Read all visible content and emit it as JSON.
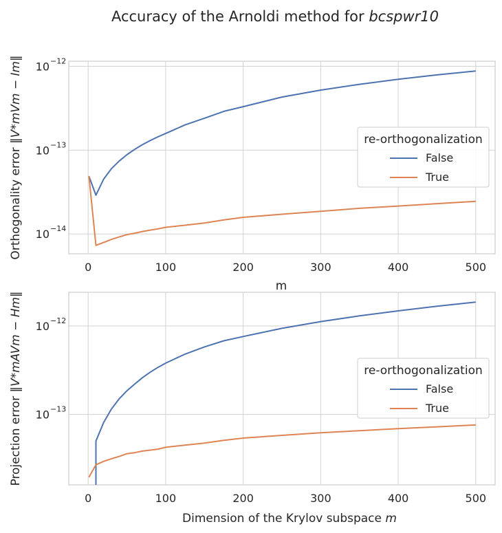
{
  "figure": {
    "title_text": "Accuracy of the Arnoldi method for ",
    "title_math": "bcspwr10"
  },
  "colors": {
    "false": "#4c72b0",
    "true": "#dd8452"
  },
  "chart_data": [
    {
      "type": "line",
      "ylabel_text": "Orthogonality error ",
      "ylabel_math": "‖V*mVm − Im‖",
      "xlabel": "m",
      "xlim": [
        -25,
        525
      ],
      "ylim": [
        5.8e-15,
        1.15e-12
      ],
      "yscale": "log",
      "grid": true,
      "legend_placement": "right",
      "xticks": [
        0,
        100,
        200,
        300,
        400,
        500
      ],
      "yticks": [
        {
          "value": 1e-14,
          "label": "10",
          "exp": "−14"
        },
        {
          "value": 1e-13,
          "label": "10",
          "exp": "−13"
        },
        {
          "value": 1e-12,
          "label": "10",
          "exp": "−12"
        }
      ],
      "legend": {
        "title": "re-orthogonalization",
        "entries": [
          "False",
          "True"
        ]
      },
      "series": [
        {
          "name": "False",
          "color": "#4c72b0",
          "x": [
            1,
            10,
            20,
            30,
            40,
            50,
            60,
            70,
            80,
            90,
            100,
            125,
            150,
            175,
            200,
            250,
            300,
            350,
            400,
            450,
            500
          ],
          "y": [
            4.9e-14,
            2.9e-14,
            4.5e-14,
            6e-14,
            7.4e-14,
            8.8e-14,
            1.02e-13,
            1.16e-13,
            1.3e-13,
            1.44e-13,
            1.58e-13,
            2e-13,
            2.4e-13,
            2.9e-13,
            3.3e-13,
            4.3e-13,
            5.2e-13,
            6.1e-13,
            7e-13,
            7.9e-13,
            8.8e-13
          ]
        },
        {
          "name": "True",
          "color": "#dd8452",
          "x": [
            1,
            10,
            20,
            30,
            40,
            50,
            60,
            70,
            80,
            90,
            100,
            125,
            150,
            175,
            200,
            250,
            300,
            350,
            400,
            450,
            500
          ],
          "y": [
            4.9e-14,
            7.3e-15,
            7.9e-15,
            8.6e-15,
            9.2e-15,
            9.8e-15,
            1.02e-14,
            1.07e-14,
            1.11e-14,
            1.15e-14,
            1.2e-14,
            1.27e-14,
            1.35e-14,
            1.47e-14,
            1.58e-14,
            1.72e-14,
            1.86e-14,
            2.02e-14,
            2.15e-14,
            2.3e-14,
            2.45e-14
          ]
        }
      ]
    },
    {
      "type": "line",
      "ylabel_text": "Projection error ",
      "ylabel_math": "‖V*mAVm − Hm‖",
      "xlabel_text": "Dimension of the Krylov subspace ",
      "xlabel_math": "m",
      "xlim": [
        -25,
        525
      ],
      "ylim": [
        1.6e-14,
        2.4e-12
      ],
      "yscale": "log",
      "grid": true,
      "legend_placement": "right",
      "xticks": [
        0,
        100,
        200,
        300,
        400,
        500
      ],
      "yticks": [
        {
          "value": 1e-13,
          "label": "10",
          "exp": "−13"
        },
        {
          "value": 1e-12,
          "label": "10",
          "exp": "−12"
        }
      ],
      "legend": {
        "title": "re-orthogonalization",
        "entries": [
          "False",
          "True"
        ]
      },
      "series": [
        {
          "name": "False",
          "color": "#4c72b0",
          "x": [
            10,
            10,
            20,
            30,
            40,
            50,
            60,
            70,
            80,
            90,
            100,
            125,
            150,
            175,
            200,
            250,
            300,
            350,
            400,
            450,
            500
          ],
          "y": [
            1.6e-14,
            5e-14,
            8.1e-14,
            1.15e-13,
            1.5e-13,
            1.85e-13,
            2.2e-13,
            2.6e-13,
            3e-13,
            3.4e-13,
            3.8e-13,
            4.8e-13,
            5.8e-13,
            6.8e-13,
            7.6e-13,
            9.4e-13,
            1.12e-12,
            1.3e-12,
            1.48e-12,
            1.67e-12,
            1.86e-12
          ]
        },
        {
          "name": "True",
          "color": "#dd8452",
          "x": [
            1,
            10,
            20,
            30,
            40,
            50,
            60,
            70,
            80,
            90,
            100,
            125,
            150,
            175,
            200,
            250,
            300,
            350,
            400,
            450,
            500
          ],
          "y": [
            1.95e-14,
            2.7e-14,
            2.95e-14,
            3.15e-14,
            3.35e-14,
            3.6e-14,
            3.7e-14,
            3.85e-14,
            3.95e-14,
            4.05e-14,
            4.25e-14,
            4.5e-14,
            4.75e-14,
            5.1e-14,
            5.4e-14,
            5.8e-14,
            6.2e-14,
            6.55e-14,
            6.9e-14,
            7.25e-14,
            7.6e-14
          ]
        }
      ]
    }
  ]
}
